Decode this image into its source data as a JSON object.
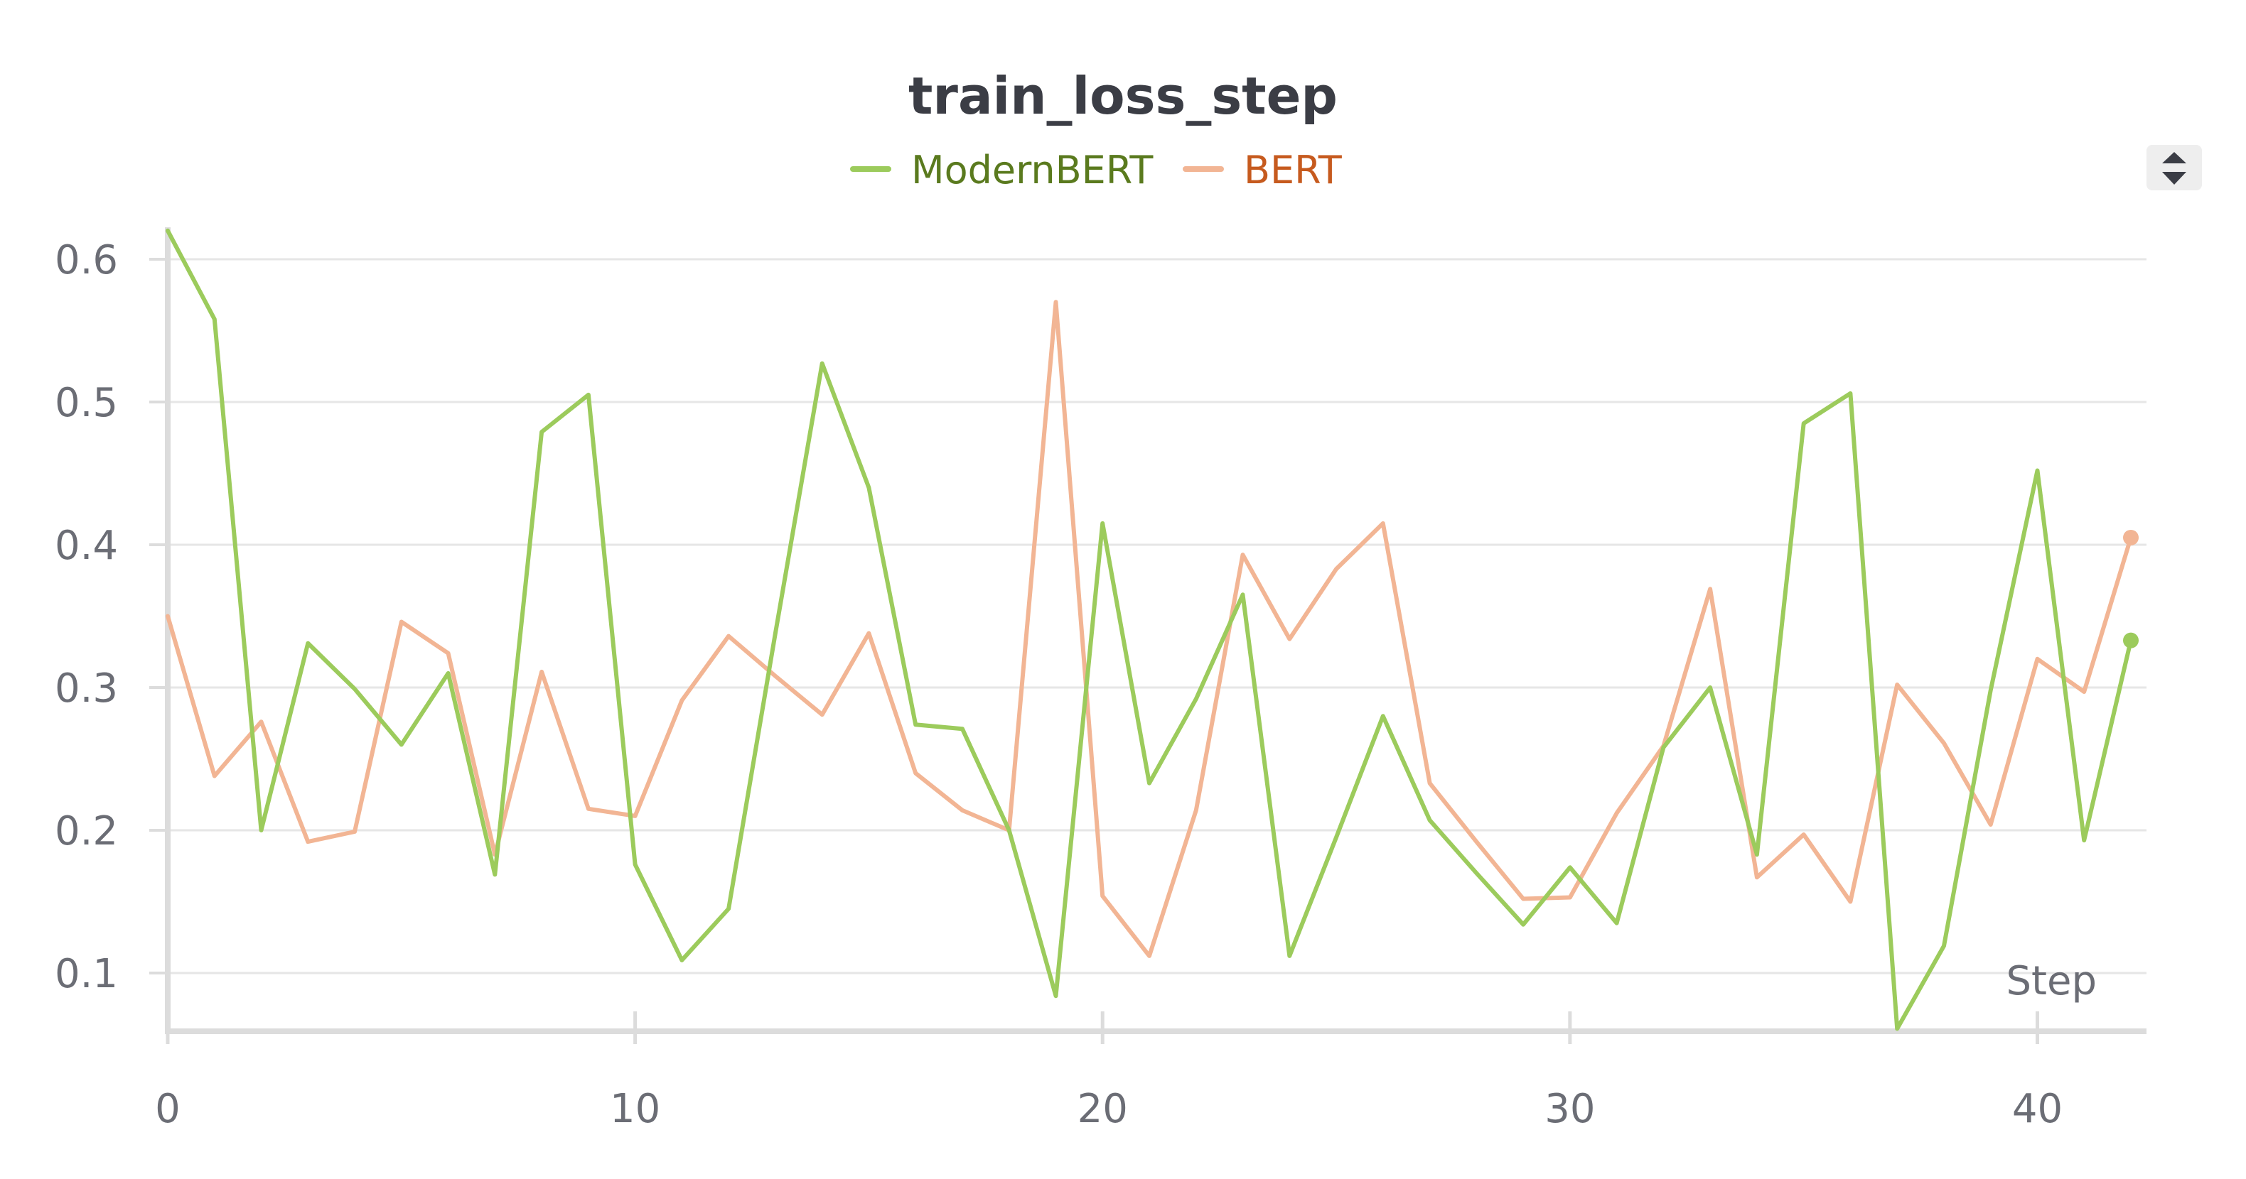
{
  "chart_data": {
    "type": "line",
    "title": "train_loss_step",
    "xlabel": "Step",
    "ylabel": "",
    "xlim": [
      0,
      42
    ],
    "ylim": [
      0.06,
      0.62
    ],
    "x_ticks": [
      0,
      10,
      20,
      30,
      40
    ],
    "y_ticks": [
      0.1,
      0.2,
      0.3,
      0.4,
      0.5,
      0.6
    ],
    "x_tick_labels": [
      "0",
      "10",
      "20",
      "30",
      "40"
    ],
    "y_tick_labels": [
      "0.1",
      "0.2",
      "0.3",
      "0.4",
      "0.5",
      "0.6"
    ],
    "grid": true,
    "legend_position": "top-center",
    "x": [
      0,
      1,
      2,
      3,
      4,
      5,
      6,
      7,
      8,
      9,
      10,
      11,
      12,
      13,
      14,
      15,
      16,
      17,
      18,
      19,
      20,
      21,
      22,
      23,
      24,
      25,
      26,
      27,
      28,
      29,
      30,
      31,
      32,
      33,
      34,
      35,
      36,
      37,
      38,
      39,
      40,
      41,
      42
    ],
    "series": [
      {
        "name": "ModernBERT",
        "color": "#9ccb5c",
        "legend_text_color": "#5a7a1e",
        "values": [
          0.62,
          0.558,
          0.2,
          0.331,
          0.299,
          0.26,
          0.31,
          0.169,
          0.479,
          0.505,
          0.176,
          0.109,
          0.145,
          0.338,
          0.527,
          0.44,
          0.274,
          0.271,
          0.2,
          0.084,
          0.415,
          0.233,
          0.292,
          0.365,
          0.112,
          0.195,
          0.28,
          0.207,
          0.17,
          0.134,
          0.174,
          0.135,
          0.258,
          0.3,
          0.183,
          0.485,
          0.506,
          0.061,
          0.119,
          0.298,
          0.452,
          0.193,
          0.333
        ]
      },
      {
        "name": "BERT",
        "color": "#f2b594",
        "legend_text_color": "#c65a1e",
        "values": [
          0.35,
          0.238,
          0.276,
          0.192,
          0.199,
          0.346,
          0.324,
          0.183,
          0.311,
          0.215,
          0.21,
          0.291,
          0.336,
          0.308,
          0.281,
          0.338,
          0.24,
          0.214,
          0.2,
          0.57,
          0.154,
          0.112,
          0.214,
          0.393,
          0.334,
          0.383,
          0.415,
          0.233,
          0.192,
          0.152,
          0.153,
          0.212,
          0.259,
          0.369,
          0.167,
          0.197,
          0.15,
          0.302,
          0.261,
          0.204,
          0.32,
          0.297,
          0.405
        ]
      }
    ]
  }
}
